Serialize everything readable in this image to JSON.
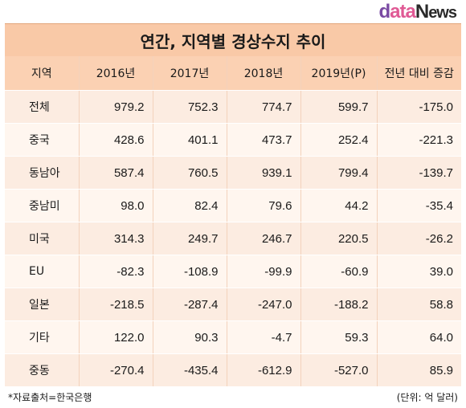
{
  "logo": {
    "part_d": "d",
    "part_ata": "ata",
    "part_n": "N",
    "part_ews": "ews"
  },
  "title": "연간, 지역별 경상수지 추이",
  "table": {
    "headers": [
      "지역",
      "2016년",
      "2017년",
      "2018년",
      "2019년(P)",
      "전년 대비 증감"
    ],
    "rows": [
      [
        "전체",
        "979.2",
        "752.3",
        "774.7",
        "599.7",
        "-175.0"
      ],
      [
        "중국",
        "428.6",
        "401.1",
        "473.7",
        "252.4",
        "-221.3"
      ],
      [
        "동남아",
        "587.4",
        "760.5",
        "939.1",
        "799.4",
        "-139.7"
      ],
      [
        "중남미",
        "98.0",
        "82.4",
        "79.6",
        "44.2",
        "-35.4"
      ],
      [
        "미국",
        "314.3",
        "249.7",
        "246.7",
        "220.5",
        "-26.2"
      ],
      [
        "EU",
        "-82.3",
        "-108.9",
        "-99.9",
        "-60.9",
        "39.0"
      ],
      [
        "일본",
        "-218.5",
        "-287.4",
        "-247.0",
        "-188.2",
        "58.8"
      ],
      [
        "기타",
        "122.0",
        "90.3",
        "-4.7",
        "59.3",
        "64.0"
      ],
      [
        "중동",
        "-270.4",
        "-435.4",
        "-612.9",
        "-527.0",
        "85.9"
      ]
    ]
  },
  "footer": {
    "source": "*자료출처=한국은행",
    "unit": "(단위: 억 달러)"
  },
  "colors": {
    "header": "#fbd1b3",
    "title_bar": "#f9c9a7",
    "row_odd": "#fcece1",
    "row_even": "#fff6ef"
  }
}
